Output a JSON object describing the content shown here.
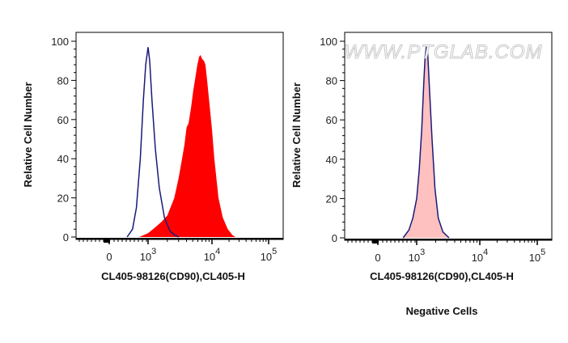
{
  "chart_data": [
    {
      "type": "area",
      "ylabel": "Relative Cell Number",
      "xlabel": "CL405-98126(CD90),CL405-H",
      "x_scale": "biexponential",
      "x_ticks": [
        {
          "label": "0",
          "base": "",
          "exp": "",
          "value": 0
        },
        {
          "label": "10^3",
          "base": "10",
          "exp": "3",
          "value": 1000
        },
        {
          "label": "10^4",
          "base": "10",
          "exp": "4",
          "value": 10000
        },
        {
          "label": "10^5",
          "base": "10",
          "exp": "5",
          "value": 100000
        }
      ],
      "y_ticks": [
        "0",
        "20",
        "40",
        "60",
        "80",
        "100"
      ],
      "ylim": [
        0,
        100
      ],
      "grid": false,
      "series": [
        {
          "style": "filled",
          "color": "#ff0000",
          "x": [
            770,
            1000,
            1300,
            1650,
            2000,
            2570,
            3000,
            3400,
            3700,
            4000,
            4300,
            4700,
            5100,
            5400,
            5900,
            6300,
            6600,
            7000,
            7500,
            7900,
            8400,
            9000,
            10000,
            11000,
            13000,
            15500,
            19000,
            23000,
            26000
          ],
          "y": [
            0,
            2,
            5,
            8,
            11,
            20,
            30,
            40,
            47,
            56,
            58,
            66,
            75,
            80,
            88,
            92,
            93,
            91,
            90,
            88,
            80,
            70,
            55,
            40,
            20,
            10,
            4,
            1,
            0
          ]
        },
        {
          "style": "outline",
          "color": "#1a1a7a",
          "x": [
            460,
            600,
            700,
            800,
            880,
            940,
            1000,
            1060,
            1150,
            1300,
            1500,
            1800,
            2200,
            2600,
            3000
          ],
          "y": [
            0,
            4,
            15,
            40,
            70,
            88,
            97,
            90,
            70,
            45,
            25,
            10,
            3,
            1,
            0
          ]
        }
      ]
    },
    {
      "type": "area",
      "ylabel": "Relative Cell Number",
      "xlabel": "CL405-98126(CD90),CL405-H",
      "title": "Negative Cells",
      "x_scale": "biexponential",
      "x_ticks": [
        {
          "label": "0",
          "base": "",
          "exp": "",
          "value": 0
        },
        {
          "label": "10^3",
          "base": "10",
          "exp": "3",
          "value": 1000
        },
        {
          "label": "10^4",
          "base": "10",
          "exp": "4",
          "value": 10000
        },
        {
          "label": "10^5",
          "base": "10",
          "exp": "5",
          "value": 100000
        }
      ],
      "y_ticks": [
        "0",
        "20",
        "40",
        "60",
        "80",
        "100"
      ],
      "ylim": [
        0,
        100
      ],
      "grid": false,
      "series": [
        {
          "style": "filled",
          "color": "#ffc0c0",
          "x": [
            650,
            800,
            900,
            1000,
            1100,
            1200,
            1300,
            1360,
            1430,
            1500,
            1600,
            1750,
            1950,
            2200,
            2600,
            3260
          ],
          "y": [
            0,
            4,
            10,
            20,
            35,
            55,
            80,
            92,
            98,
            93,
            75,
            50,
            25,
            10,
            3,
            0
          ]
        },
        {
          "style": "outline",
          "color": "#1a1a7a",
          "x": [
            650,
            800,
            900,
            1000,
            1100,
            1200,
            1300,
            1360,
            1430,
            1500,
            1600,
            1750,
            1950,
            2200,
            2600,
            3260
          ],
          "y": [
            0,
            4,
            10,
            20,
            35,
            55,
            80,
            92,
            98,
            93,
            75,
            50,
            25,
            10,
            3,
            0
          ]
        }
      ]
    }
  ],
  "watermark": "WWW.PTGLAB.COM"
}
